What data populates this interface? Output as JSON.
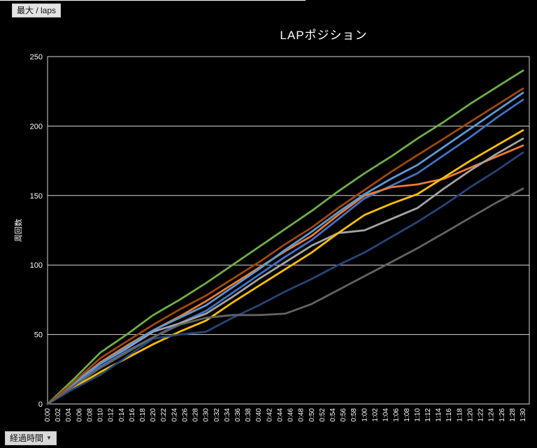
{
  "window": {
    "theme_background": "#000000"
  },
  "pivot_buttons": {
    "value_field_label": "最大 / laps",
    "axis_field_label": "経過時間",
    "axis_field_arrow": "▼"
  },
  "chart_data": {
    "type": "line",
    "title": "LAPポジション",
    "ylabel": "周回数",
    "xlabel": "",
    "ylim": [
      0,
      250
    ],
    "yticks": [
      0,
      50,
      100,
      150,
      200,
      250
    ],
    "grid": "horizontal",
    "legend": "none",
    "grid_color": "#d9d9d9",
    "axis_text_color": "#ffffff",
    "x_minutes": [
      0,
      5,
      10,
      15,
      20,
      25,
      30,
      35,
      40,
      45,
      50,
      55,
      60,
      65,
      70,
      75,
      80,
      85,
      90
    ],
    "xtick_labels": [
      "0:00",
      "0:02",
      "0:04",
      "0:06",
      "0:08",
      "0:10",
      "0:12",
      "0:14",
      "0:16",
      "0:18",
      "0:20",
      "0:22",
      "0:24",
      "0:26",
      "0:28",
      "0:30",
      "0:32",
      "0:34",
      "0:36",
      "0:38",
      "0:40",
      "0:42",
      "0:44",
      "0:46",
      "0:48",
      "0:50",
      "0:52",
      "0:54",
      "0:56",
      "0:58",
      "1:00",
      "1:02",
      "1:04",
      "1:06",
      "1:08",
      "1:10",
      "1:12",
      "1:14",
      "1:16",
      "1:18",
      "1:20",
      "1:22",
      "1:24",
      "1:26",
      "1:28",
      "1:30"
    ],
    "series": [
      {
        "name": "blue",
        "color": "#4472C4",
        "values": [
          0,
          14,
          27,
          38,
          48,
          58,
          67,
          80,
          93,
          106,
          118,
          133,
          148,
          157,
          166,
          179,
          192,
          206,
          219
        ]
      },
      {
        "name": "orange",
        "color": "#ED7D31",
        "values": [
          0,
          15,
          30,
          42,
          53,
          63,
          74,
          86,
          98,
          110,
          121,
          136,
          150,
          156,
          158,
          162,
          170,
          178,
          186
        ]
      },
      {
        "name": "gray",
        "color": "#A5A5A5",
        "values": [
          0,
          15,
          29,
          40,
          52,
          58,
          65,
          77,
          90,
          102,
          114,
          123,
          125,
          133,
          141,
          155,
          168,
          180,
          191
        ]
      },
      {
        "name": "gold",
        "color": "#FFC000",
        "values": [
          0,
          12,
          23,
          33,
          43,
          52,
          60,
          73,
          85,
          97,
          109,
          123,
          136,
          144,
          151,
          163,
          175,
          186,
          197
        ]
      },
      {
        "name": "light-blue",
        "color": "#5B9BD5",
        "values": [
          0,
          15,
          29,
          41,
          53,
          62,
          71,
          84,
          97,
          111,
          124,
          138,
          151,
          162,
          172,
          185,
          198,
          211,
          224
        ]
      },
      {
        "name": "green",
        "color": "#70AD47",
        "values": [
          0,
          18,
          37,
          50,
          64,
          75,
          87,
          100,
          113,
          126,
          139,
          153,
          166,
          178,
          191,
          203,
          216,
          228,
          240
        ]
      },
      {
        "name": "dark-blue",
        "color": "#264478",
        "values": [
          0,
          11,
          21,
          34,
          47,
          50,
          52,
          62,
          71,
          81,
          90,
          100,
          109,
          120,
          131,
          143,
          156,
          168,
          181
        ]
      },
      {
        "name": "dark-orange",
        "color": "#9E480E",
        "values": [
          0,
          16,
          33,
          45,
          57,
          68,
          78,
          90,
          102,
          115,
          127,
          141,
          154,
          167,
          179,
          191,
          203,
          215,
          227
        ]
      },
      {
        "name": "dark-gray",
        "color": "#636363",
        "values": [
          0,
          13,
          26,
          37,
          48,
          57,
          62,
          64,
          64,
          65,
          72,
          82,
          92,
          102,
          112,
          123,
          134,
          145,
          155
        ]
      }
    ]
  }
}
